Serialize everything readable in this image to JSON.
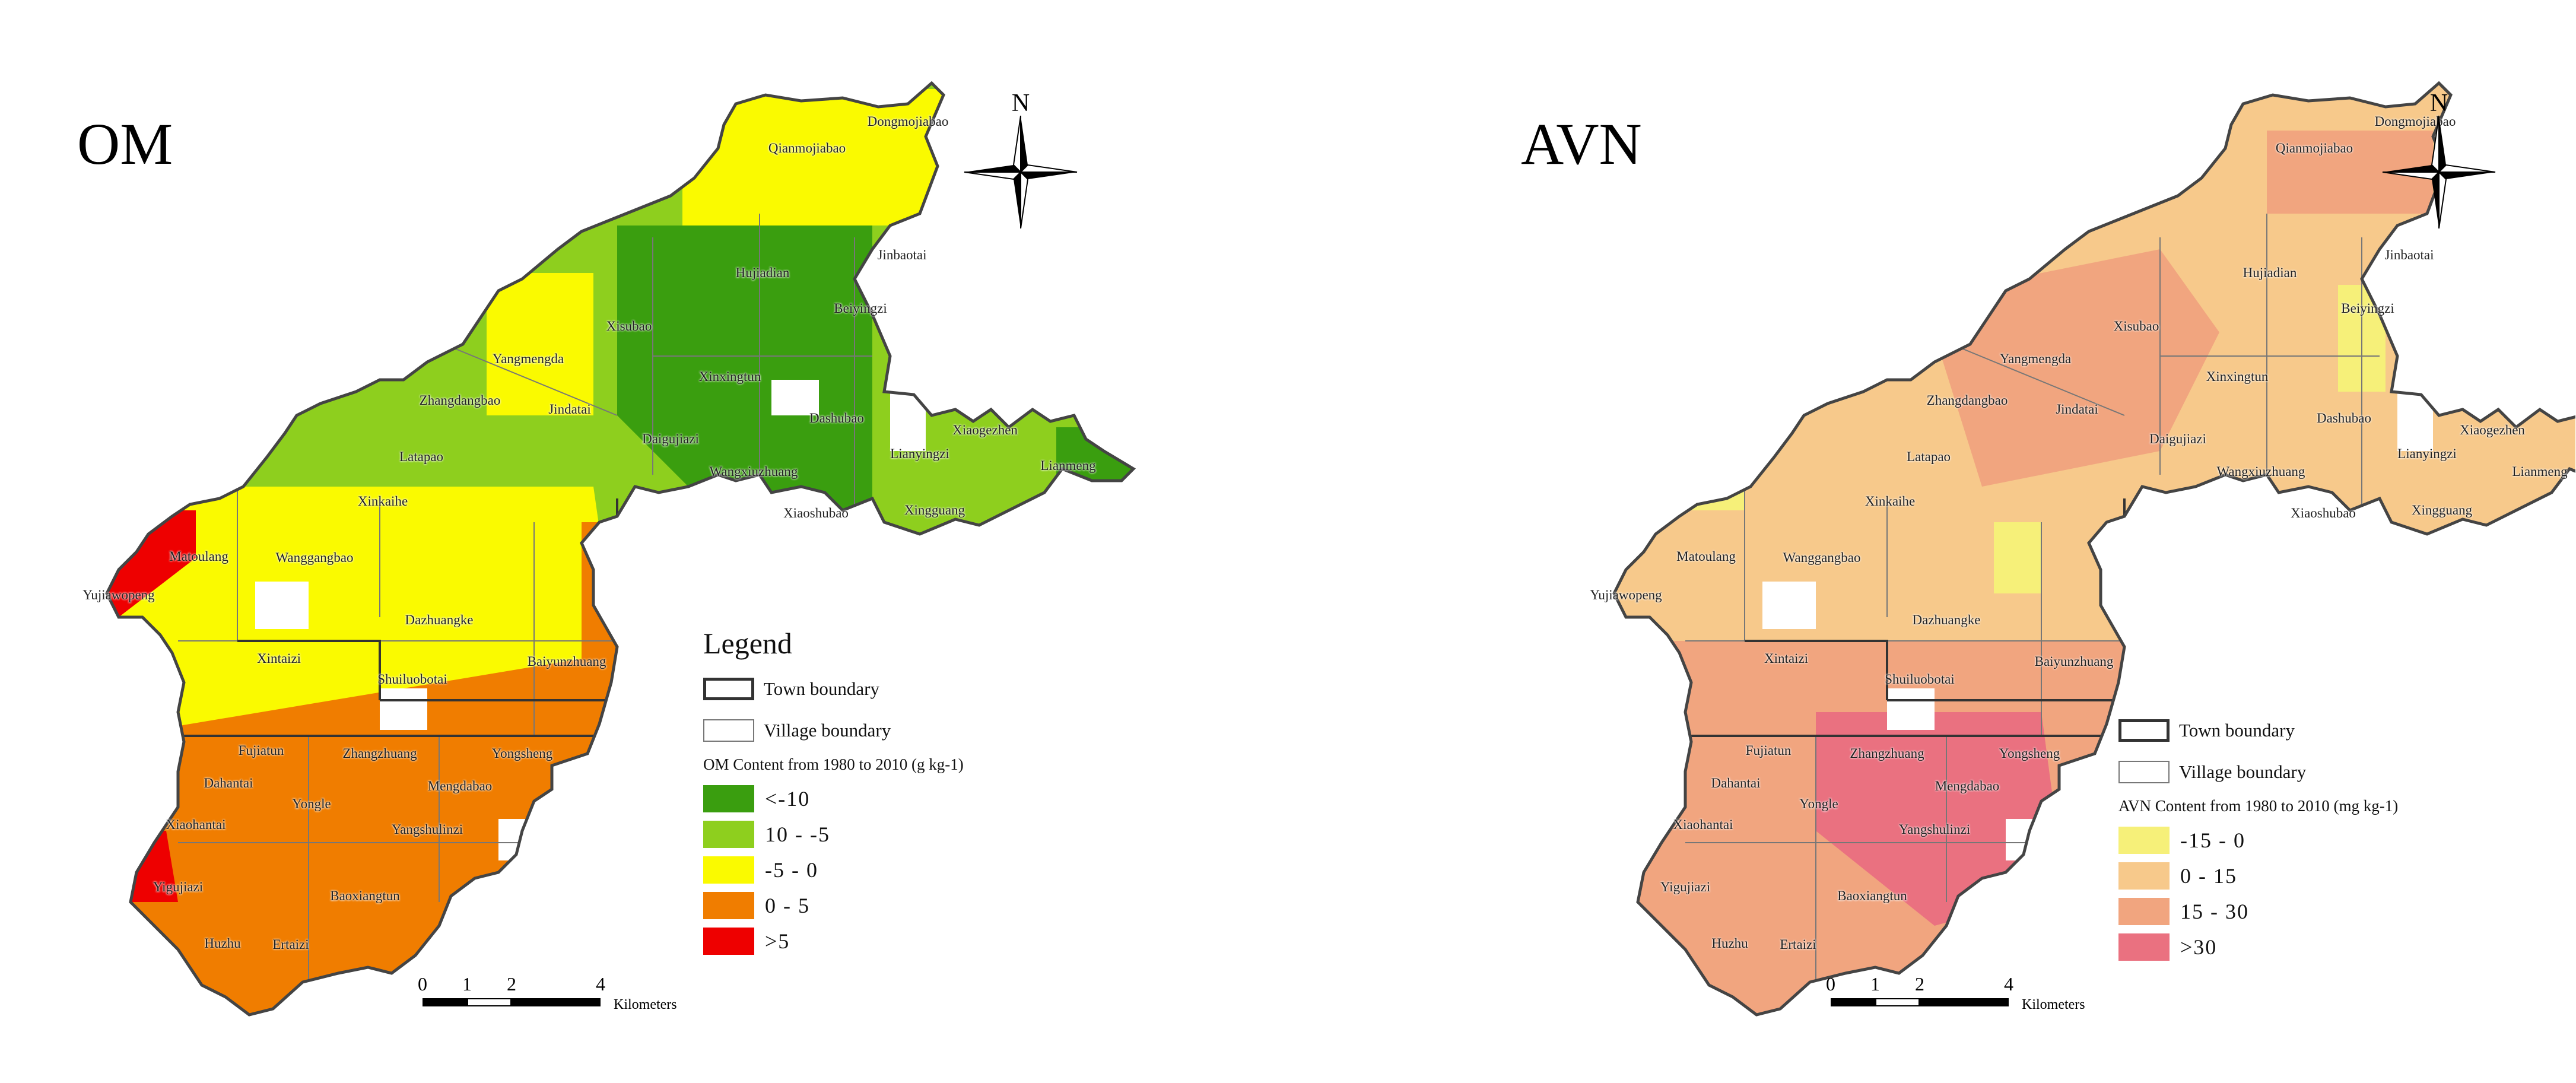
{
  "panels": [
    {
      "id": "om",
      "title": "OM",
      "legend_heading": "Legend",
      "town_boundary": "Town boundary",
      "village_boundary": "Village boundary",
      "content_label": "OM Content from 1980 to 2010 (g kg-1)",
      "classes": [
        {
          "label": "<-10",
          "color": "#3a9e0f"
        },
        {
          "label": "10 - -5",
          "color": "#8ecf1e"
        },
        {
          "label": "-5 - 0",
          "color": "#fafa00"
        },
        {
          "label": "0 - 5",
          "color": "#f07d00"
        },
        {
          "label": ">5",
          "color": "#ee0000"
        }
      ],
      "scale_ticks": [
        "0",
        "1",
        "2",
        "4"
      ],
      "scale_unit": "Kilometers",
      "north": "N"
    },
    {
      "id": "avn",
      "title": "AVN",
      "legend_heading": "",
      "town_boundary": "Town boundary",
      "village_boundary": "Village boundary",
      "content_label": "AVN Content from 1980 to 2010 (mg kg-1)",
      "classes": [
        {
          "label": "-15 - 0",
          "color": "#f6f079"
        },
        {
          "label": "0 - 15",
          "color": "#f7c98b"
        },
        {
          "label": "15 - 30",
          "color": "#f1a57f"
        },
        {
          "label": ">30",
          "color": "#ea7180"
        }
      ],
      "scale_ticks": [
        "0",
        "1",
        "2",
        "4"
      ],
      "scale_unit": "Kilometers",
      "north": "N"
    }
  ],
  "villages": {
    "qianmojiabao": "Qianmojiabao",
    "dongmojiabao": "Dongmojiabao",
    "hujiadian": "Hujiadian",
    "jinbaotai": "Jinbaotai",
    "beiyingzi": "Beiyingzi",
    "xisubao": "Xisubao",
    "yangmengda": "Yangmengda",
    "xinxingtun": "Xinxingtun",
    "zhangdangbao": "Zhangdangbao",
    "jindatai": "Jindatai",
    "dashubao": "Dashubao",
    "daigujiazi": "Daigujiazi",
    "xiaogezhen": "Xiaogezhen",
    "wangxiuzhuang": "Wangxiuzhuang",
    "lianyingzi": "Lianyingzi",
    "lianmeng": "Lianmeng",
    "latapao": "Latapao",
    "xinkaihe": "Xinkaihe",
    "xiaoshubao": "Xiaoshubao",
    "xingguang": "Xingguang",
    "matoulang": "Matoulang",
    "wanggangbao": "Wanggangbao",
    "yujiawopeng": "Yujiawopeng",
    "dazhuangke": "Dazhuangke",
    "xintaizi": "Xintaizi",
    "shuiluobotai": "Shuiluobotai",
    "baiyunzhuang": "Baiyunzhuang",
    "fujiatun": "Fujiatun",
    "zhangzhuang": "Zhangzhuang",
    "yongsheng": "Yongsheng",
    "dahantai": "Dahantai",
    "yongle": "Yongle",
    "mengdabao": "Mengdabao",
    "xiaohantai": "Xiaohantai",
    "yangshulinzi": "Yangshulinzi",
    "yigujiazi": "Yigujiazi",
    "baoxiangtun": "Baoxiangtun",
    "huzhu": "Huzhu",
    "ertaizi": "Ertaizi"
  }
}
